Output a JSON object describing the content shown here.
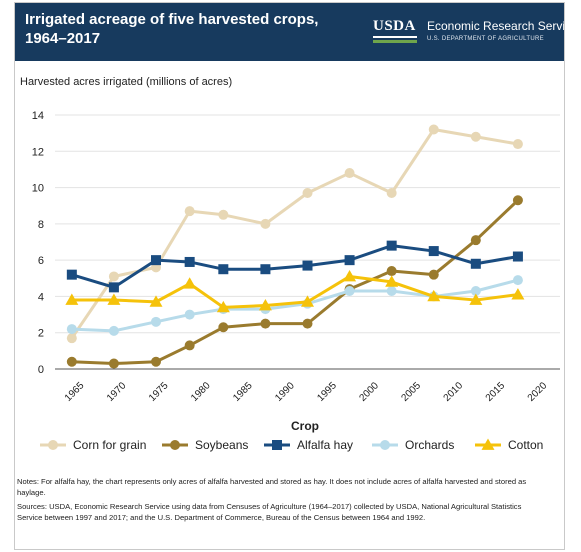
{
  "header": {
    "title": "Irrigated acreage of five harvested crops, 1964–2017",
    "logo_usda": "USDA",
    "logo_ers": "Economic Research Service",
    "logo_dept": "U.S. DEPARTMENT OF AGRICULTURE"
  },
  "colors": {
    "header_bg": "#173a5e",
    "corn": "#e7d7b5",
    "soybeans": "#9a7b2e",
    "alfalfa": "#1a4c80",
    "orchards": "#b7dbea",
    "cotton": "#f5c20a"
  },
  "notes": {
    "alfalfa": "Notes: For alfalfa hay, the chart represents only acres of alfalfa harvested and stored as hay. It does not include acres of alfalfa harvested and stored as haylage.",
    "sources": "Sources: USDA, Economic Research Service using data from Censuses of Agriculture (1964–2017) collected by USDA, National Agricultural Statistics Service between 1997 and 2017; and the U.S. Department of Commerce, Bureau of the Census between 1964 and 1992."
  },
  "chart_data": {
    "type": "line",
    "title": "Irrigated acreage of five harvested crops, 1964–2017",
    "ylabel": "Harvested acres irrigated (millions of acres)",
    "xlabel": "Crop",
    "xlim": [
      1962,
      2022
    ],
    "ylim": [
      0,
      14
    ],
    "xticks": [
      1965,
      1970,
      1975,
      1980,
      1985,
      1990,
      1995,
      2000,
      2005,
      2010,
      2015,
      2020
    ],
    "yticks": [
      0,
      2,
      4,
      6,
      8,
      10,
      12,
      14
    ],
    "grid": true,
    "legend": "bottom",
    "x": [
      1964,
      1969,
      1974,
      1978,
      1982,
      1987,
      1992,
      1997,
      2002,
      2007,
      2012,
      2017
    ],
    "series": [
      {
        "name": "Corn for grain",
        "marker": "circle",
        "color": "#e7d7b5",
        "values": [
          1.7,
          5.1,
          5.6,
          8.7,
          8.5,
          8.0,
          9.7,
          10.8,
          9.7,
          13.2,
          12.8,
          12.4
        ]
      },
      {
        "name": "Soybeans",
        "marker": "circle",
        "color": "#9a7b2e",
        "values": [
          0.4,
          0.3,
          0.4,
          1.3,
          2.3,
          2.5,
          2.5,
          4.4,
          5.4,
          5.2,
          7.1,
          9.3
        ]
      },
      {
        "name": "Alfalfa hay",
        "marker": "square",
        "color": "#1a4c80",
        "values": [
          5.2,
          4.5,
          6.0,
          5.9,
          5.5,
          5.5,
          5.7,
          6.0,
          6.8,
          6.5,
          5.8,
          6.2
        ]
      },
      {
        "name": "Orchards",
        "marker": "circle",
        "color": "#b7dbea",
        "values": [
          2.2,
          2.1,
          2.6,
          3.0,
          3.3,
          3.3,
          3.6,
          4.3,
          4.3,
          4.0,
          4.3,
          4.9
        ]
      },
      {
        "name": "Cotton",
        "marker": "triangle",
        "color": "#f5c20a",
        "values": [
          3.8,
          3.8,
          3.7,
          4.7,
          3.4,
          3.5,
          3.7,
          5.1,
          4.8,
          4.0,
          3.8,
          4.1
        ]
      }
    ]
  }
}
